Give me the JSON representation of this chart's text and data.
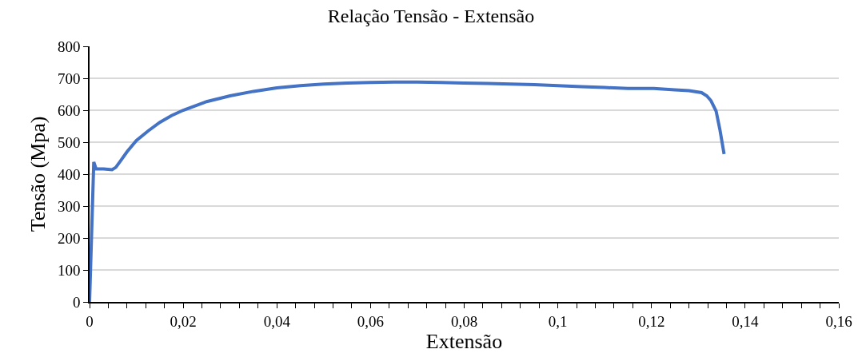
{
  "chart_data": {
    "type": "line",
    "title": "Relação Tensão - Extensão",
    "xlabel": "Extensão",
    "ylabel": "Tensão (Mpa)",
    "series": [
      {
        "color": "#4472c4",
        "x": [
          0,
          0.0009,
          0.0014,
          0.003,
          0.0048,
          0.0056,
          0.0065,
          0.008,
          0.01,
          0.0125,
          0.015,
          0.0175,
          0.02,
          0.025,
          0.03,
          0.035,
          0.04,
          0.045,
          0.05,
          0.055,
          0.06,
          0.065,
          0.07,
          0.075,
          0.08,
          0.085,
          0.09,
          0.095,
          0.1,
          0.105,
          0.11,
          0.115,
          0.1205,
          0.125,
          0.128,
          0.1307,
          0.1318,
          0.1327,
          0.1338,
          0.1346,
          0.1355
        ],
        "values": [
          0,
          438,
          416,
          416,
          414,
          421,
          439,
          470,
          505,
          535,
          562,
          583,
          600,
          627,
          645,
          659,
          670,
          677,
          682,
          685,
          687,
          688,
          688,
          687,
          685,
          684,
          682,
          680,
          677,
          674,
          671,
          668,
          668,
          664,
          661,
          655,
          645,
          630,
          597,
          540,
          463
        ]
      }
    ],
    "xlim": [
      0,
      0.16
    ],
    "ylim": [
      0,
      800
    ],
    "xticks": [
      {
        "value": 0,
        "label": "0"
      },
      {
        "value": 0.004,
        "label": null
      },
      {
        "value": 0.008,
        "label": null
      },
      {
        "value": 0.012,
        "label": null
      },
      {
        "value": 0.016,
        "label": null
      },
      {
        "value": 0.02,
        "label": "0,02"
      },
      {
        "value": 0.024,
        "label": null
      },
      {
        "value": 0.028,
        "label": null
      },
      {
        "value": 0.032,
        "label": null
      },
      {
        "value": 0.036,
        "label": null
      },
      {
        "value": 0.04,
        "label": "0,04"
      },
      {
        "value": 0.044,
        "label": null
      },
      {
        "value": 0.048,
        "label": null
      },
      {
        "value": 0.052,
        "label": null
      },
      {
        "value": 0.056,
        "label": null
      },
      {
        "value": 0.06,
        "label": "0,06"
      },
      {
        "value": 0.064,
        "label": null
      },
      {
        "value": 0.068,
        "label": null
      },
      {
        "value": 0.072,
        "label": null
      },
      {
        "value": 0.076,
        "label": null
      },
      {
        "value": 0.08,
        "label": "0,08"
      },
      {
        "value": 0.084,
        "label": null
      },
      {
        "value": 0.088,
        "label": null
      },
      {
        "value": 0.092,
        "label": null
      },
      {
        "value": 0.096,
        "label": null
      },
      {
        "value": 0.1,
        "label": "0,1"
      },
      {
        "value": 0.104,
        "label": null
      },
      {
        "value": 0.108,
        "label": null
      },
      {
        "value": 0.112,
        "label": null
      },
      {
        "value": 0.116,
        "label": null
      },
      {
        "value": 0.12,
        "label": "0,12"
      },
      {
        "value": 0.124,
        "label": null
      },
      {
        "value": 0.128,
        "label": null
      },
      {
        "value": 0.132,
        "label": null
      },
      {
        "value": 0.136,
        "label": null
      },
      {
        "value": 0.14,
        "label": "0,14"
      },
      {
        "value": 0.144,
        "label": null
      },
      {
        "value": 0.148,
        "label": null
      },
      {
        "value": 0.152,
        "label": null
      },
      {
        "value": 0.156,
        "label": null
      },
      {
        "value": 0.16,
        "label": "0,16"
      }
    ],
    "yticks": [
      0,
      100,
      200,
      300,
      400,
      500,
      600,
      700,
      800
    ],
    "grid": "y",
    "marker": "none",
    "line_style": "solid"
  }
}
